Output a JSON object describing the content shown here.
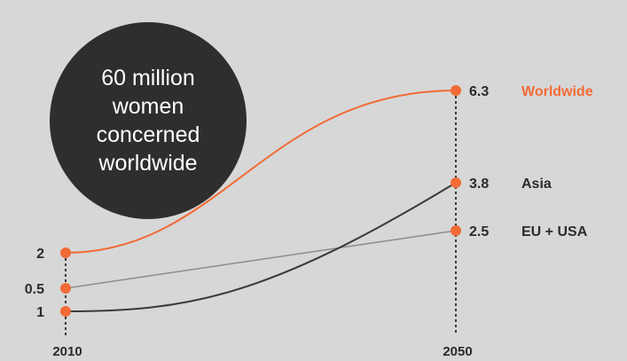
{
  "chart_data": {
    "type": "line",
    "title": "",
    "xlabel": "",
    "ylabel": "",
    "x": [
      "2010",
      "2050"
    ],
    "ylim": [
      0,
      6.3
    ],
    "grid": false,
    "series": [
      {
        "name": "Worldwide",
        "values": [
          2,
          6.3
        ],
        "color": "#f26a35"
      },
      {
        "name": "Asia",
        "values": [
          0.5,
          3.8
        ],
        "color": "#3a3a3a"
      },
      {
        "name": "EU + USA",
        "values": [
          1,
          2.5
        ],
        "color": "#8c8c8c"
      }
    ],
    "start_labels": [
      "2",
      "1",
      "0.5"
    ],
    "end_labels": [
      "6.3",
      "3.8",
      "2.5"
    ],
    "callout": "60 million women concerned worldwide"
  },
  "colors": {
    "background": "#d7d7d7",
    "accent": "#f26a35",
    "text": "#2b2b2b",
    "callout_bg": "#2f2e2d"
  }
}
